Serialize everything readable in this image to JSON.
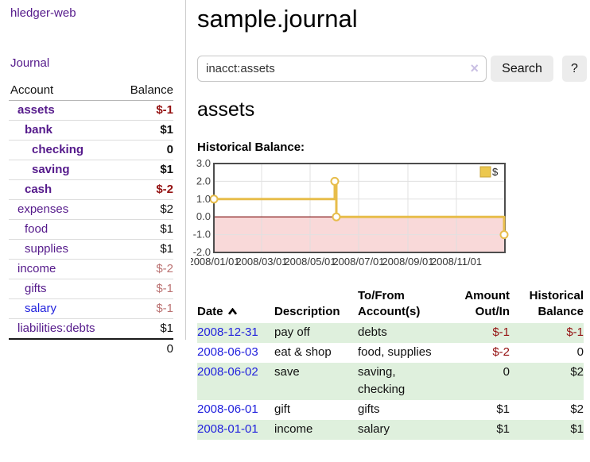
{
  "app": {
    "brand": "hledger-web"
  },
  "sidebar": {
    "nav": {
      "journal": "Journal"
    },
    "accounts_table": {
      "headers": {
        "account": "Account",
        "balance": "Balance"
      },
      "rows": [
        {
          "name": "assets",
          "balance": "$-1"
        },
        {
          "name": "bank",
          "balance": "$1"
        },
        {
          "name": "checking",
          "balance": "0"
        },
        {
          "name": "saving",
          "balance": "$1"
        },
        {
          "name": "cash",
          "balance": "$-2"
        },
        {
          "name": "expenses",
          "balance": "$2"
        },
        {
          "name": "food",
          "balance": "$1"
        },
        {
          "name": "supplies",
          "balance": "$1"
        },
        {
          "name": "income",
          "balance": "$-2"
        },
        {
          "name": "gifts",
          "balance": "$-1"
        },
        {
          "name": "salary",
          "balance": "$-1"
        },
        {
          "name": "liabilities:debts",
          "balance": "$1"
        }
      ],
      "total": "0"
    }
  },
  "header": {
    "title": "sample.journal"
  },
  "search": {
    "query": "inacct:assets",
    "clear_icon": "×",
    "search_label": "Search",
    "help_label": "?"
  },
  "account_page": {
    "title": "assets",
    "chart_label": "Historical Balance:"
  },
  "chart_data": {
    "type": "line",
    "title": "Historical Balance:",
    "step": true,
    "ylim": [
      -2,
      3
    ],
    "xlim_days": [
      0,
      366
    ],
    "grid": true,
    "legend_position": "top-right",
    "series": [
      {
        "name": "$",
        "points": [
          {
            "date": "2008-01-01",
            "day": 0,
            "value": 1
          },
          {
            "date": "2008-06-01",
            "day": 152,
            "value": 2
          },
          {
            "date": "2008-06-03",
            "day": 154,
            "value": 0
          },
          {
            "date": "2008-12-31",
            "day": 365,
            "value": -1
          }
        ]
      }
    ],
    "yticks": [
      {
        "label": "3.0",
        "value": 3
      },
      {
        "label": "2.0",
        "value": 2
      },
      {
        "label": "1.0",
        "value": 1
      },
      {
        "label": "0.0",
        "value": 0
      },
      {
        "label": "-1.0",
        "value": -1
      },
      {
        "label": "-2.0",
        "value": -2
      }
    ],
    "xticks": [
      {
        "label": "2008/01/01",
        "day": 0
      },
      {
        "label": "2008/03/01",
        "day": 60
      },
      {
        "label": "2008/05/01",
        "day": 121
      },
      {
        "label": "2008/07/01",
        "day": 182
      },
      {
        "label": "2008/09/01",
        "day": 244
      },
      {
        "label": "2008/11/01",
        "day": 305
      }
    ],
    "colors": {
      "line": "#e7bd4b",
      "marker_fill": "#ffffff",
      "negative_fill": "#f9d9d9",
      "zero_line": "#7d0b0b",
      "border": "#4d4d4d",
      "grid": "#e0e0e0",
      "tick_text": "#444444",
      "legend_swatch": "#ecc84f",
      "legend_swatch_border": "#c9a53b"
    }
  },
  "register": {
    "columns": [
      {
        "lines": [
          "Date"
        ]
      },
      {
        "lines": [
          "Description"
        ]
      },
      {
        "lines": [
          "To/From",
          "Account(s)"
        ]
      },
      {
        "lines": [
          "Amount",
          "Out/In"
        ]
      },
      {
        "lines": [
          "Historical",
          "Balance"
        ]
      }
    ],
    "rows": [
      {
        "date": "2008-12-31",
        "description": "pay off",
        "accounts": "debts",
        "amount": "$-1",
        "balance": "$-1"
      },
      {
        "date": "2008-06-03",
        "description": "eat & shop",
        "accounts": "food, supplies",
        "amount": "$-2",
        "balance": "0"
      },
      {
        "date": "2008-06-02",
        "description": "save",
        "accounts": "saving, checking",
        "amount": "0",
        "balance": "$2"
      },
      {
        "date": "2008-06-01",
        "description": "gift",
        "accounts": "gifts",
        "amount": "$1",
        "balance": "$2"
      },
      {
        "date": "2008-01-01",
        "description": "income",
        "accounts": "salary",
        "amount": "$1",
        "balance": "$1"
      }
    ]
  },
  "colors": {
    "link_purple": "#551a8b",
    "link_blue": "#2222dd",
    "negative_strong": "#941111",
    "negative_muted": "#bb7272",
    "row_green": "#dff0dd"
  }
}
